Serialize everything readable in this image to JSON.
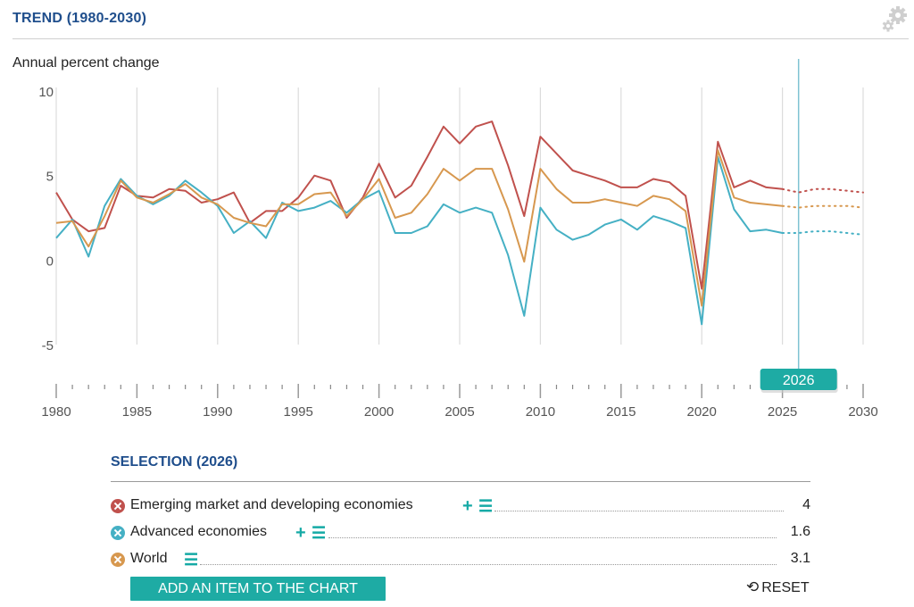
{
  "header": {
    "title": "TREND (1980-2030)"
  },
  "colors": {
    "emerging": "#c0514d",
    "advanced": "#45b0c4",
    "world": "#d7984f",
    "accent": "#1eaba4",
    "title": "#1f4e8c"
  },
  "chart_data": {
    "type": "line",
    "title": "TREND (1980-2030)",
    "ylabel": "Annual percent change",
    "xlabel": "",
    "ylim": [
      -5,
      10
    ],
    "xlim": [
      1980,
      2030
    ],
    "yticks": [
      10,
      5,
      0,
      -5
    ],
    "xticks": [
      1980,
      1985,
      1990,
      1995,
      2000,
      2005,
      2010,
      2015,
      2020,
      2025,
      2030
    ],
    "selected_year": 2026,
    "selected_label": "2026",
    "forecast_style": "dotted after 2025",
    "series": [
      {
        "name": "Emerging market and developing economies",
        "key": "emerging",
        "x": [
          1980,
          1981,
          1982,
          1983,
          1984,
          1985,
          1986,
          1987,
          1988,
          1989,
          1990,
          1991,
          1992,
          1993,
          1994,
          1995,
          1996,
          1997,
          1998,
          1999,
          2000,
          2001,
          2002,
          2003,
          2004,
          2005,
          2006,
          2007,
          2008,
          2009,
          2010,
          2011,
          2012,
          2013,
          2014,
          2015,
          2016,
          2017,
          2018,
          2019,
          2020,
          2021,
          2022,
          2023,
          2024,
          2025,
          2026,
          2027,
          2028,
          2029,
          2030
        ],
        "values": [
          4.0,
          2.4,
          1.7,
          1.9,
          4.4,
          3.8,
          3.7,
          4.2,
          4.1,
          3.4,
          3.6,
          4.0,
          2.2,
          2.9,
          2.9,
          3.7,
          5.0,
          4.7,
          2.5,
          3.7,
          5.7,
          3.7,
          4.4,
          6.1,
          7.9,
          6.9,
          7.9,
          8.2,
          5.6,
          2.6,
          7.3,
          6.3,
          5.3,
          5.0,
          4.7,
          4.3,
          4.3,
          4.8,
          4.6,
          3.8,
          -1.7,
          7.0,
          4.3,
          4.7,
          4.3,
          4.2,
          4.0,
          4.2,
          4.2,
          4.1,
          4.0
        ]
      },
      {
        "name": "Advanced economies",
        "key": "advanced",
        "x": [
          1980,
          1981,
          1982,
          1983,
          1984,
          1985,
          1986,
          1987,
          1988,
          1989,
          1990,
          1991,
          1992,
          1993,
          1994,
          1995,
          1996,
          1997,
          1998,
          1999,
          2000,
          2001,
          2002,
          2003,
          2004,
          2005,
          2006,
          2007,
          2008,
          2009,
          2010,
          2011,
          2012,
          2013,
          2014,
          2015,
          2016,
          2017,
          2018,
          2019,
          2020,
          2021,
          2022,
          2023,
          2024,
          2025,
          2026,
          2027,
          2028,
          2029,
          2030
        ],
        "values": [
          1.3,
          2.4,
          0.2,
          3.2,
          4.8,
          3.8,
          3.3,
          3.8,
          4.7,
          4.0,
          3.2,
          1.6,
          2.3,
          1.3,
          3.4,
          2.9,
          3.1,
          3.5,
          2.8,
          3.6,
          4.1,
          1.6,
          1.6,
          2.0,
          3.3,
          2.8,
          3.1,
          2.8,
          0.3,
          -3.3,
          3.1,
          1.8,
          1.2,
          1.5,
          2.1,
          2.4,
          1.8,
          2.6,
          2.3,
          1.9,
          -3.8,
          6.1,
          3.0,
          1.7,
          1.8,
          1.6,
          1.6,
          1.7,
          1.7,
          1.6,
          1.5
        ]
      },
      {
        "name": "World",
        "key": "world",
        "x": [
          1980,
          1981,
          1982,
          1983,
          1984,
          1985,
          1986,
          1987,
          1988,
          1989,
          1990,
          1991,
          1992,
          1993,
          1994,
          1995,
          1996,
          1997,
          1998,
          1999,
          2000,
          2001,
          2002,
          2003,
          2004,
          2005,
          2006,
          2007,
          2008,
          2009,
          2010,
          2011,
          2012,
          2013,
          2014,
          2015,
          2016,
          2017,
          2018,
          2019,
          2020,
          2021,
          2022,
          2023,
          2024,
          2025,
          2026,
          2027,
          2028,
          2029,
          2030
        ],
        "values": [
          2.2,
          2.3,
          0.8,
          2.6,
          4.7,
          3.7,
          3.4,
          3.9,
          4.5,
          3.7,
          3.3,
          2.5,
          2.2,
          2.0,
          3.3,
          3.3,
          3.9,
          4.0,
          2.6,
          3.6,
          4.8,
          2.5,
          2.8,
          3.9,
          5.4,
          4.7,
          5.4,
          5.4,
          3.0,
          -0.1,
          5.4,
          4.2,
          3.4,
          3.4,
          3.6,
          3.4,
          3.2,
          3.8,
          3.6,
          2.9,
          -2.7,
          6.5,
          3.7,
          3.4,
          3.3,
          3.2,
          3.1,
          3.2,
          3.2,
          3.2,
          3.1
        ]
      }
    ]
  },
  "selection": {
    "title": "SELECTION (2026)",
    "rows": [
      {
        "name": "Emerging market and developing economies",
        "value": "4"
      },
      {
        "name": "Advanced economies",
        "value": "1.6"
      },
      {
        "name": "World",
        "value": "3.1"
      }
    ],
    "add_label": "ADD AN ITEM TO THE CHART",
    "reset_label": "RESET",
    "plus_glyph": "+",
    "list_glyph": "☰",
    "reset_glyph": "⟲"
  }
}
